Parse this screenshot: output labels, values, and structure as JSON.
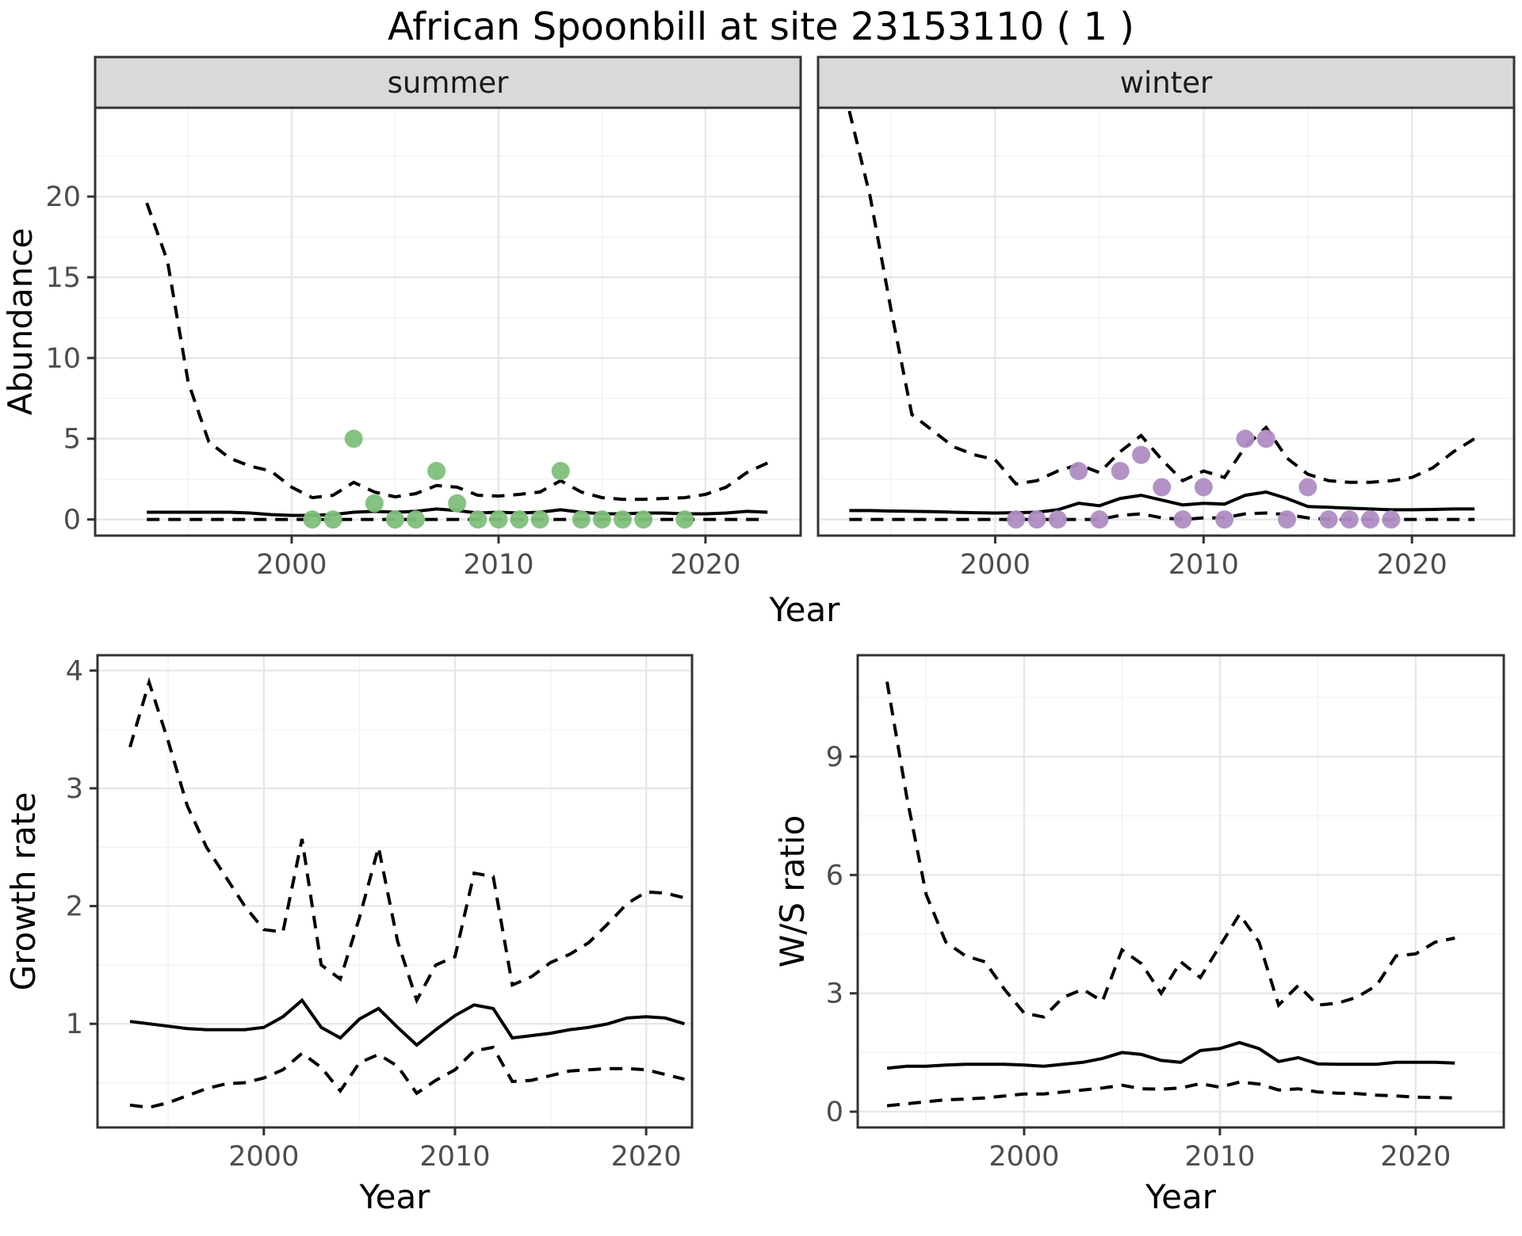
{
  "title": "African Spoonbill at site 23153110 ( 1 )",
  "colors": {
    "summer_point": "#7fbf7b",
    "winter_point": "#af8dc3",
    "line": "#000000",
    "panel_border": "#333333",
    "strip_fill": "#d9d9d9",
    "strip_text": "#1a1a1a",
    "grid_major": "#e7e7e7",
    "grid_minor": "#f3f3f3",
    "tick_text": "#4d4d4d",
    "axis_title_text": "#000000"
  },
  "chart_data": [
    {
      "type": "line",
      "id": "abundance-summer",
      "facet_label": "summer",
      "xlabel": "Year",
      "ylabel": "Abundance",
      "x_range": [
        1990.5,
        2024.6
      ],
      "y_range": [
        -1,
        25.5
      ],
      "xticks": [
        2000,
        2010,
        2020
      ],
      "yticks": [
        0,
        5,
        10,
        15,
        20
      ],
      "grid": true,
      "legend": "none",
      "years": [
        1993,
        1994,
        1995,
        1996,
        1997,
        1998,
        1999,
        2000,
        2001,
        2002,
        2003,
        2004,
        2005,
        2006,
        2007,
        2008,
        2009,
        2010,
        2011,
        2012,
        2013,
        2014,
        2015,
        2016,
        2017,
        2018,
        2019,
        2020,
        2021,
        2022,
        2023
      ],
      "series": [
        {
          "name": "median",
          "style": "solid",
          "values": [
            0.45,
            0.45,
            0.45,
            0.45,
            0.45,
            0.4,
            0.3,
            0.25,
            0.25,
            0.3,
            0.45,
            0.5,
            0.45,
            0.5,
            0.65,
            0.55,
            0.4,
            0.45,
            0.4,
            0.45,
            0.6,
            0.45,
            0.35,
            0.35,
            0.4,
            0.4,
            0.35,
            0.35,
            0.4,
            0.5,
            0.45
          ]
        },
        {
          "name": "upper_ci",
          "style": "dashed",
          "values": [
            19.6,
            16.0,
            8.5,
            4.8,
            3.8,
            3.3,
            3.0,
            2.0,
            1.35,
            1.5,
            2.3,
            1.7,
            1.4,
            1.6,
            2.1,
            2.0,
            1.5,
            1.45,
            1.55,
            1.7,
            2.4,
            1.7,
            1.35,
            1.25,
            1.25,
            1.3,
            1.35,
            1.55,
            2.0,
            2.9,
            3.5
          ]
        },
        {
          "name": "lower_ci",
          "style": "dashed",
          "values": [
            0,
            0,
            0,
            0,
            0,
            0,
            0,
            0,
            0,
            0,
            0,
            0,
            0,
            0,
            0,
            0,
            0,
            0,
            0,
            0,
            0,
            0,
            0,
            0,
            0,
            0,
            0,
            0,
            0,
            0,
            0
          ]
        }
      ],
      "observations": {
        "years": [
          2001,
          2002,
          2003,
          2004,
          2005,
          2006,
          2007,
          2008,
          2009,
          2010,
          2011,
          2012,
          2013,
          2014,
          2015,
          2016,
          2017,
          2019
        ],
        "values": [
          0,
          0,
          5,
          1,
          0,
          0,
          3,
          1,
          0,
          0,
          0,
          0,
          3,
          0,
          0,
          0,
          0,
          0
        ]
      }
    },
    {
      "type": "line",
      "id": "abundance-winter",
      "facet_label": "winter",
      "xlabel": "Year",
      "ylabel": "Abundance",
      "x_range": [
        1991.5,
        2024.9
      ],
      "y_range": [
        -1,
        25.5
      ],
      "xticks": [
        2000,
        2010,
        2020
      ],
      "yticks": [
        0,
        5,
        10,
        15,
        20
      ],
      "grid": true,
      "legend": "none",
      "years": [
        1993,
        1994,
        1995,
        1996,
        1997,
        1998,
        1999,
        2000,
        2001,
        2002,
        2003,
        2004,
        2005,
        2006,
        2007,
        2008,
        2009,
        2010,
        2011,
        2012,
        2013,
        2014,
        2015,
        2016,
        2017,
        2018,
        2019,
        2020,
        2021,
        2022,
        2023
      ],
      "series": [
        {
          "name": "median",
          "style": "solid",
          "values": [
            0.55,
            0.55,
            0.52,
            0.5,
            0.48,
            0.45,
            0.42,
            0.4,
            0.42,
            0.45,
            0.6,
            1.0,
            0.85,
            1.3,
            1.5,
            1.2,
            0.9,
            1.0,
            0.95,
            1.5,
            1.7,
            1.3,
            0.8,
            0.75,
            0.7,
            0.65,
            0.6,
            0.6,
            0.62,
            0.65,
            0.65
          ]
        },
        {
          "name": "upper_ci",
          "style": "dashed",
          "values": [
            25.3,
            20.0,
            13.0,
            6.5,
            5.5,
            4.5,
            4.0,
            3.7,
            2.2,
            2.4,
            3.0,
            3.4,
            2.9,
            4.2,
            5.2,
            3.7,
            2.4,
            3.0,
            2.6,
            4.5,
            5.7,
            3.8,
            2.8,
            2.4,
            2.3,
            2.3,
            2.4,
            2.6,
            3.2,
            4.2,
            5.0
          ]
        },
        {
          "name": "lower_ci",
          "style": "dashed",
          "values": [
            0,
            0,
            0,
            0,
            0,
            0,
            0,
            0,
            0,
            0,
            0,
            0,
            0,
            0.25,
            0.35,
            0.1,
            0,
            0.1,
            0.1,
            0.35,
            0.4,
            0.3,
            0.1,
            0,
            0,
            0,
            0,
            0,
            0,
            0,
            0
          ]
        }
      ],
      "observations": {
        "years": [
          2001,
          2002,
          2003,
          2004,
          2005,
          2006,
          2007,
          2008,
          2009,
          2010,
          2011,
          2012,
          2013,
          2014,
          2015,
          2016,
          2017,
          2018,
          2019
        ],
        "values": [
          0,
          0,
          0,
          3,
          0,
          3,
          4,
          2,
          0,
          2,
          0,
          5,
          5,
          0,
          2,
          0,
          0,
          0,
          0
        ]
      }
    },
    {
      "type": "line",
      "id": "growth-rate",
      "facet_label": "",
      "xlabel": "Year",
      "ylabel": "Growth rate",
      "x_range": [
        1991.3,
        2022.4
      ],
      "y_range": [
        0.12,
        4.13
      ],
      "xticks": [
        2000,
        2010,
        2020
      ],
      "yticks": [
        1,
        2,
        3,
        4
      ],
      "grid": true,
      "legend": "none",
      "years": [
        1993,
        1994,
        1995,
        1996,
        1997,
        1998,
        1999,
        2000,
        2001,
        2002,
        2003,
        2004,
        2005,
        2006,
        2007,
        2008,
        2009,
        2010,
        2011,
        2012,
        2013,
        2014,
        2015,
        2016,
        2017,
        2018,
        2019,
        2020,
        2021,
        2022
      ],
      "series": [
        {
          "name": "median",
          "style": "solid",
          "values": [
            1.02,
            1.0,
            0.98,
            0.96,
            0.95,
            0.95,
            0.95,
            0.97,
            1.06,
            1.2,
            0.97,
            0.88,
            1.04,
            1.13,
            0.97,
            0.82,
            0.95,
            1.07,
            1.16,
            1.13,
            0.88,
            0.9,
            0.92,
            0.95,
            0.97,
            1.0,
            1.05,
            1.06,
            1.05,
            1.0
          ]
        },
        {
          "name": "upper_ci",
          "style": "dashed",
          "values": [
            3.35,
            3.9,
            3.4,
            2.85,
            2.5,
            2.25,
            2.0,
            1.8,
            1.78,
            2.57,
            1.5,
            1.38,
            1.9,
            2.5,
            1.7,
            1.2,
            1.5,
            1.57,
            2.28,
            2.25,
            1.33,
            1.4,
            1.52,
            1.59,
            1.69,
            1.85,
            2.02,
            2.12,
            2.11,
            2.07
          ]
        },
        {
          "name": "lower_ci",
          "style": "dashed",
          "values": [
            0.31,
            0.29,
            0.33,
            0.39,
            0.45,
            0.49,
            0.5,
            0.54,
            0.61,
            0.75,
            0.63,
            0.43,
            0.67,
            0.74,
            0.64,
            0.41,
            0.52,
            0.61,
            0.77,
            0.8,
            0.51,
            0.52,
            0.56,
            0.6,
            0.61,
            0.62,
            0.62,
            0.61,
            0.57,
            0.53
          ]
        }
      ],
      "observations": {
        "years": [],
        "values": []
      }
    },
    {
      "type": "line",
      "id": "ws-ratio",
      "facet_label": "",
      "xlabel": "Year",
      "ylabel": "W/S ratio",
      "x_range": [
        1991.5,
        2024.5
      ],
      "y_range": [
        -0.4,
        11.57
      ],
      "xticks": [
        2000,
        2010,
        2020
      ],
      "yticks": [
        0,
        3,
        6,
        9
      ],
      "grid": true,
      "legend": "none",
      "years": [
        1993,
        1994,
        1995,
        1996,
        1997,
        1998,
        1999,
        2000,
        2001,
        2002,
        2003,
        2004,
        2005,
        2006,
        2007,
        2008,
        2009,
        2010,
        2011,
        2012,
        2013,
        2014,
        2015,
        2016,
        2017,
        2018,
        2019,
        2020,
        2021,
        2022
      ],
      "series": [
        {
          "name": "median",
          "style": "solid",
          "values": [
            1.1,
            1.15,
            1.15,
            1.18,
            1.2,
            1.2,
            1.2,
            1.18,
            1.15,
            1.2,
            1.25,
            1.35,
            1.5,
            1.45,
            1.3,
            1.25,
            1.55,
            1.6,
            1.75,
            1.6,
            1.27,
            1.37,
            1.21,
            1.2,
            1.2,
            1.2,
            1.25,
            1.25,
            1.25,
            1.23
          ]
        },
        {
          "name": "upper_ci",
          "style": "dashed",
          "values": [
            10.9,
            8.0,
            5.5,
            4.3,
            3.95,
            3.8,
            3.1,
            2.5,
            2.4,
            2.9,
            3.1,
            2.8,
            4.1,
            3.75,
            3.0,
            3.8,
            3.4,
            4.2,
            5.0,
            4.3,
            2.7,
            3.2,
            2.7,
            2.75,
            2.9,
            3.2,
            3.95,
            4.0,
            4.3,
            4.4
          ]
        },
        {
          "name": "lower_ci",
          "style": "dashed",
          "values": [
            0.15,
            0.2,
            0.25,
            0.3,
            0.32,
            0.35,
            0.4,
            0.45,
            0.45,
            0.5,
            0.55,
            0.6,
            0.67,
            0.58,
            0.57,
            0.6,
            0.71,
            0.62,
            0.75,
            0.7,
            0.55,
            0.58,
            0.5,
            0.47,
            0.46,
            0.42,
            0.4,
            0.37,
            0.36,
            0.35
          ]
        }
      ],
      "observations": {
        "years": [],
        "values": []
      }
    }
  ]
}
